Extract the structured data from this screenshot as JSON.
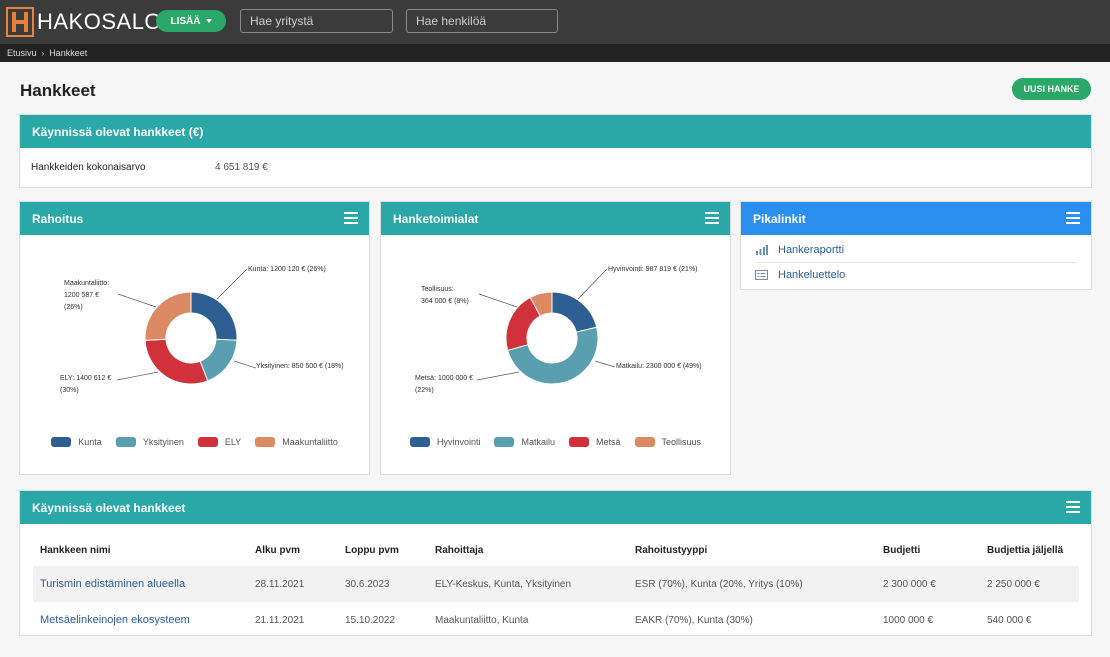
{
  "app": {
    "logo_text": "HAKOSALO",
    "add_label": "LISÄÄ",
    "company_search_placeholder": "Hae yritystä",
    "person_search_placeholder": "Hae henkilöä"
  },
  "breadcrumb": {
    "items": [
      "Etusivu",
      "Hankkeet"
    ]
  },
  "page": {
    "title": "Hankkeet",
    "new_button": "UUSI HANKE"
  },
  "summary": {
    "title": "Käynnissä olevat hankkeet (€)",
    "label": "Hankkeiden kokonaisarvo",
    "value": "4 651 819 €"
  },
  "funding": {
    "title": "Rahoitus",
    "legend": [
      "Kunta",
      "Yksityinen",
      "ELY",
      "Maakuntaliitto"
    ],
    "callouts": {
      "kunta": "Kunta: 1200 120 € (26%)",
      "yksityinen": "Yksityinen: 850 500 € (18%)",
      "ely_line1": "ELY: 1400 612 €",
      "ely_line2": "(30%)",
      "maak_line1": "Maakuntaliitto:",
      "maak_line2": "1200 587 €",
      "maak_line3": "(26%)"
    }
  },
  "industries": {
    "title": "Hanketoimialat",
    "legend": [
      "Hyvinvointi",
      "Matkailu",
      "Metsä",
      "Teollisuus"
    ],
    "callouts": {
      "hyvinvointi": "Hyvinvointi: 987 819 € (21%)",
      "matkailu": "Matkailu: 2300 000 € (49%)",
      "metsa_line1": "Metsä: 1000 000 €",
      "metsa_line2": "(22%)",
      "teollisuus_line1": "Teollisuus:",
      "teollisuus_line2": "364 000 € (8%)"
    }
  },
  "quicklinks": {
    "title": "Pikalinkit",
    "items": [
      "Hankeraportti",
      "Hankeluettelo"
    ]
  },
  "projects": {
    "title": "Käynnissä olevat hankkeet",
    "columns": [
      "Hankkeen nimi",
      "Alku pvm",
      "Loppu pvm",
      "Rahoittaja",
      "Rahoitustyyppi",
      "Budjetti",
      "Budjettia jäljellä"
    ],
    "rows": [
      [
        "Turismin edistäminen alueella",
        "28.11.2021",
        "30.6.2023",
        "ELY-Keskus, Kunta, Yksityinen",
        "ESR (70%), Kunta (20%, Yritys (10%)",
        "2 300 000 €",
        "2 250 000 €"
      ],
      [
        "Metsäelinkeinojen ekosysteem",
        "21.11.2021",
        "15.10.2022",
        "Maakuntaliitto, Kunta",
        "EAKR (70%), Kunta (30%)",
        "1000 000 €",
        "540 000 €"
      ]
    ]
  },
  "colors": {
    "series": [
      "#2e5f93",
      "#5a9fb0",
      "#d1313a",
      "#dc8a63"
    ],
    "teal": "#2aa8a8",
    "blue": "#2b8ff0",
    "green": "#2aa86a"
  },
  "chart_data": [
    {
      "type": "pie",
      "title": "Rahoitus",
      "categories": [
        "Kunta",
        "Yksityinen",
        "ELY",
        "Maakuntaliitto"
      ],
      "values": [
        1200120,
        850500,
        1400612,
        1200587
      ],
      "percent": [
        26,
        18,
        30,
        26
      ]
    },
    {
      "type": "pie",
      "title": "Hanketoimialat",
      "categories": [
        "Hyvinvointi",
        "Matkailu",
        "Metsä",
        "Teollisuus"
      ],
      "values": [
        987819,
        2300000,
        1000000,
        364000
      ],
      "percent": [
        21,
        49,
        22,
        8
      ]
    }
  ]
}
